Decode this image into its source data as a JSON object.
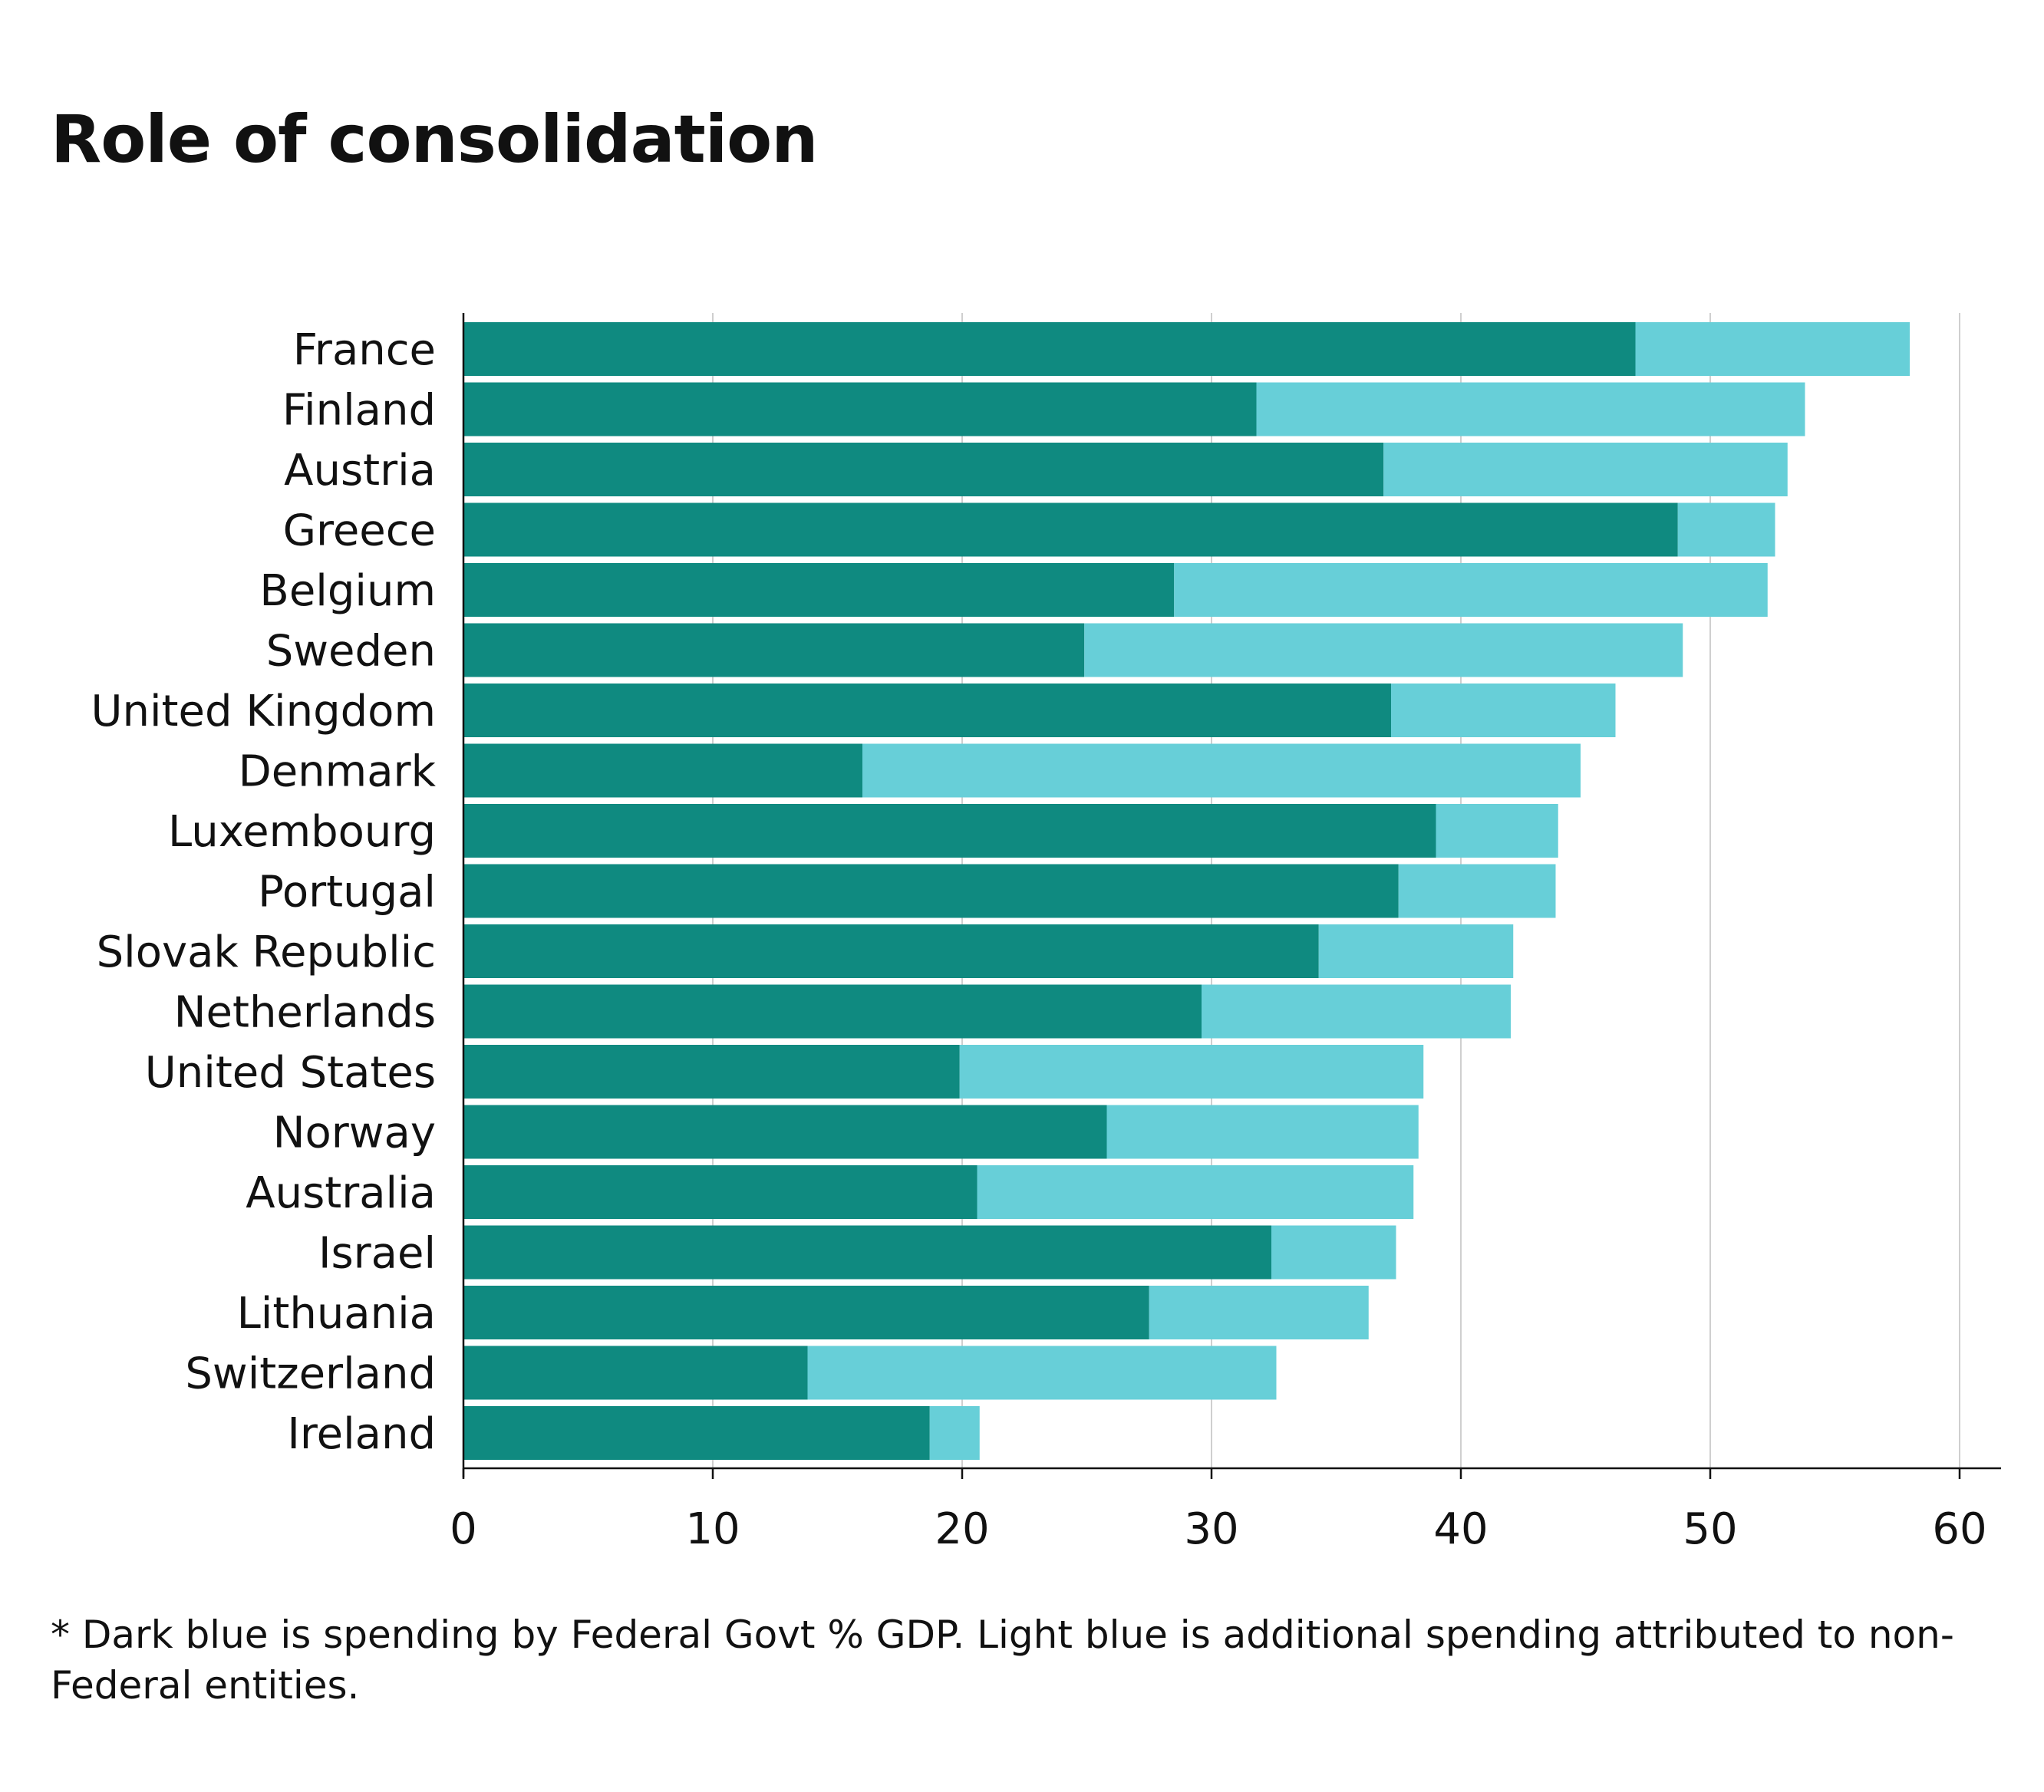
{
  "chart_data": {
    "type": "bar",
    "orientation": "horizontal",
    "stacked": true,
    "title": "Role of consolidation",
    "footnote": "* Dark blue is spending by Federal Govt % GDP. Light blue is additional spending attributed to non-Federal entities.",
    "xlim": [
      0,
      62
    ],
    "xticks": [
      0,
      10,
      20,
      30,
      40,
      50,
      60
    ],
    "grid": "vertical",
    "legend": "none",
    "categories": [
      "France",
      "Finland",
      "Austria",
      "Greece",
      "Belgium",
      "Sweden",
      "United Kingdom",
      "Denmark",
      "Luxembourg",
      "Portugal",
      "Slovak Republic",
      "Netherlands",
      "United States",
      "Norway",
      "Australia",
      "Israel",
      "Lithuania",
      "Switzerland",
      "Ireland"
    ],
    "series": [
      {
        "color": "#0f8a80",
        "values": [
          47.0,
          31.8,
          36.9,
          48.7,
          28.5,
          24.9,
          37.2,
          16.0,
          39.0,
          37.5,
          34.3,
          29.6,
          19.9,
          25.8,
          20.6,
          32.4,
          27.5,
          13.8,
          18.7
        ]
      },
      {
        "color": "#67cfd8",
        "values": [
          11.0,
          22.0,
          16.2,
          3.9,
          23.8,
          24.0,
          9.0,
          28.8,
          4.9,
          6.3,
          7.8,
          12.4,
          18.6,
          12.5,
          17.5,
          5.0,
          8.8,
          18.8,
          2.0
        ]
      }
    ]
  }
}
